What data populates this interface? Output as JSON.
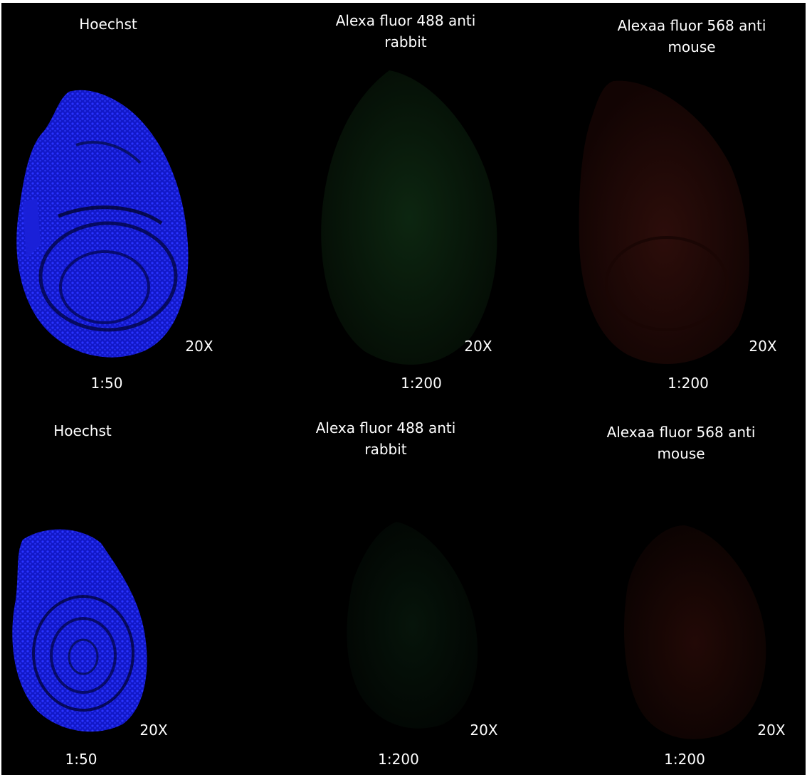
{
  "figure": {
    "background": "#000000",
    "panels": [
      {
        "stain": "Hoechst",
        "stain_line2": "",
        "magnification": "20X",
        "dilution": "1:50",
        "channel_color": "#1a22ff"
      },
      {
        "stain": "Alexa fluor 488 anti",
        "stain_line2": "rabbit",
        "magnification": "20X",
        "dilution": "1:200",
        "channel_color": "#0f2a12"
      },
      {
        "stain": "Alexaa fluor 568 anti",
        "stain_line2": "mouse",
        "magnification": "20X",
        "dilution": "1:200",
        "channel_color": "#2a0c0a"
      },
      {
        "stain": "Hoechst",
        "stain_line2": "",
        "magnification": "20X",
        "dilution": "1:50",
        "channel_color": "#1a22ff"
      },
      {
        "stain": "Alexa fluor 488 anti",
        "stain_line2": "rabbit",
        "magnification": "20X",
        "dilution": "1:200",
        "channel_color": "#06140a"
      },
      {
        "stain": "Alexaa fluor 568 anti",
        "stain_line2": "mouse",
        "magnification": "20X",
        "dilution": "1:200",
        "channel_color": "#1e0806"
      }
    ]
  }
}
